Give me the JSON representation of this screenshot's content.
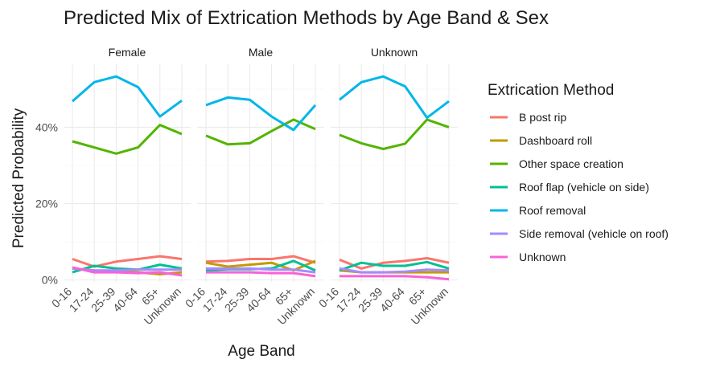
{
  "chart_data": {
    "type": "line",
    "title": "Predicted Mix of Extrication Methods by Age Band & Sex",
    "xlabel": "Age Band",
    "ylabel": "Predicted Probability",
    "categories": [
      "0-16",
      "17-24",
      "25-39",
      "40-64",
      "65+",
      "Unknown"
    ],
    "y_ticks": [
      0,
      0.2,
      0.4
    ],
    "y_tick_labels": [
      "0%",
      "20%",
      "40%"
    ],
    "ylim": [
      -0.005,
      0.565
    ],
    "grid": true,
    "legend": {
      "title": "Extrication Method",
      "position": "right"
    },
    "colors": {
      "B post rip": "#F8766D",
      "Dashboard roll": "#C49A00",
      "Other space creation": "#53B400",
      "Roof flap (vehicle on side)": "#00C094",
      "Roof removal": "#00B6EB",
      "Side removal (vehicle on roof)": "#A58AFF",
      "Unknown": "#FB61D7"
    },
    "series_order": [
      "B post rip",
      "Dashboard roll",
      "Other space creation",
      "Roof flap (vehicle on side)",
      "Roof removal",
      "Side removal (vehicle on roof)",
      "Unknown"
    ],
    "panels": [
      {
        "label": "Female",
        "series": [
          {
            "name": "B post rip",
            "values": [
              0.055,
              0.035,
              0.048,
              0.055,
              0.062,
              0.055
            ]
          },
          {
            "name": "Dashboard roll",
            "values": [
              0.03,
              0.025,
              0.022,
              0.02,
              0.015,
              0.02
            ]
          },
          {
            "name": "Other space creation",
            "values": [
              0.363,
              0.347,
              0.331,
              0.347,
              0.406,
              0.382
            ]
          },
          {
            "name": "Roof flap (vehicle on side)",
            "values": [
              0.02,
              0.037,
              0.03,
              0.027,
              0.04,
              0.03
            ]
          },
          {
            "name": "Roof removal",
            "values": [
              0.468,
              0.518,
              0.533,
              0.505,
              0.428,
              0.47
            ]
          },
          {
            "name": "Side removal (vehicle on roof)",
            "values": [
              0.03,
              0.025,
              0.025,
              0.027,
              0.027,
              0.027
            ]
          },
          {
            "name": "Unknown",
            "values": [
              0.033,
              0.02,
              0.02,
              0.018,
              0.02,
              0.012
            ]
          }
        ]
      },
      {
        "label": "Male",
        "series": [
          {
            "name": "B post rip",
            "values": [
              0.048,
              0.05,
              0.055,
              0.055,
              0.062,
              0.045
            ]
          },
          {
            "name": "Dashboard roll",
            "values": [
              0.045,
              0.035,
              0.04,
              0.045,
              0.025,
              0.05
            ]
          },
          {
            "name": "Other space creation",
            "values": [
              0.378,
              0.355,
              0.358,
              0.39,
              0.42,
              0.395
            ]
          },
          {
            "name": "Roof flap (vehicle on side)",
            "values": [
              0.025,
              0.028,
              0.028,
              0.03,
              0.05,
              0.025
            ]
          },
          {
            "name": "Roof removal",
            "values": [
              0.458,
              0.478,
              0.472,
              0.428,
              0.393,
              0.458
            ]
          },
          {
            "name": "Side removal (vehicle on roof)",
            "values": [
              0.03,
              0.03,
              0.03,
              0.027,
              0.027,
              0.02
            ]
          },
          {
            "name": "Unknown",
            "values": [
              0.02,
              0.02,
              0.02,
              0.018,
              0.018,
              0.01
            ]
          }
        ]
      },
      {
        "label": "Unknown",
        "series": [
          {
            "name": "B post rip",
            "values": [
              0.053,
              0.03,
              0.045,
              0.05,
              0.057,
              0.045
            ]
          },
          {
            "name": "Dashboard roll",
            "values": [
              0.025,
              0.02,
              0.02,
              0.02,
              0.02,
              0.02
            ]
          },
          {
            "name": "Other space creation",
            "values": [
              0.38,
              0.358,
              0.343,
              0.357,
              0.42,
              0.4
            ]
          },
          {
            "name": "Roof flap (vehicle on side)",
            "values": [
              0.025,
              0.045,
              0.037,
              0.037,
              0.047,
              0.03
            ]
          },
          {
            "name": "Roof removal",
            "values": [
              0.472,
              0.518,
              0.533,
              0.507,
              0.425,
              0.468
            ]
          },
          {
            "name": "Side removal (vehicle on roof)",
            "values": [
              0.03,
              0.02,
              0.02,
              0.022,
              0.027,
              0.025
            ]
          },
          {
            "name": "Unknown",
            "values": [
              0.01,
              0.01,
              0.01,
              0.01,
              0.007,
              0.002
            ]
          }
        ]
      }
    ]
  }
}
